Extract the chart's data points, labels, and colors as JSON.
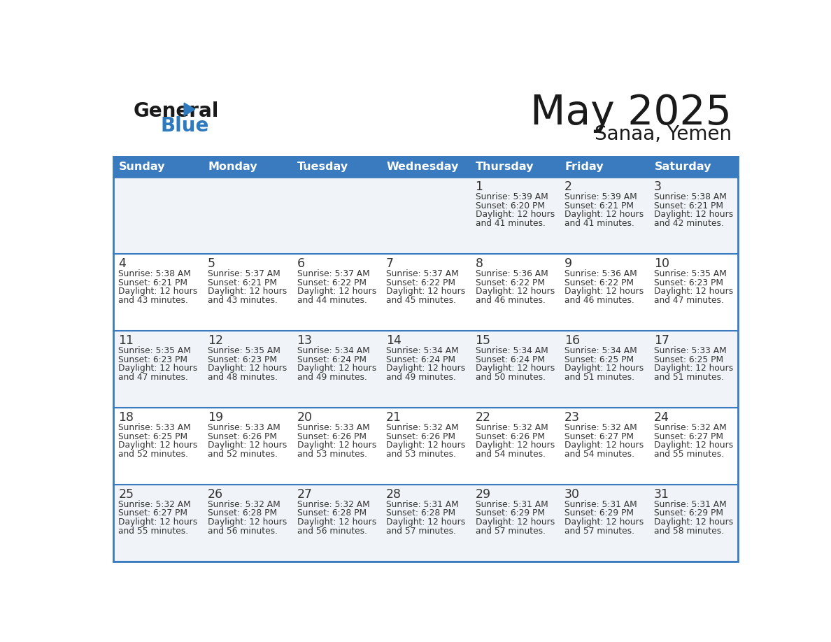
{
  "title": "May 2025",
  "subtitle": "Sanaa, Yemen",
  "header_color": "#3a7bbf",
  "header_text_color": "#ffffff",
  "days_of_week": [
    "Sunday",
    "Monday",
    "Tuesday",
    "Wednesday",
    "Thursday",
    "Friday",
    "Saturday"
  ],
  "bg_color": "#ffffff",
  "row_colors": [
    "#f0f4f8",
    "#ffffff",
    "#f0f4f8",
    "#ffffff",
    "#f0f4f8"
  ],
  "cell_text_color": "#333333",
  "border_color": "#3a7bbf",
  "line_color": "#3a7bbf",
  "calendar": [
    [
      null,
      null,
      null,
      null,
      {
        "day": 1,
        "sunrise": "5:39 AM",
        "sunset": "6:20 PM",
        "daylight": "12 hours and 41 minutes."
      },
      {
        "day": 2,
        "sunrise": "5:39 AM",
        "sunset": "6:21 PM",
        "daylight": "12 hours and 41 minutes."
      },
      {
        "day": 3,
        "sunrise": "5:38 AM",
        "sunset": "6:21 PM",
        "daylight": "12 hours and 42 minutes."
      }
    ],
    [
      {
        "day": 4,
        "sunrise": "5:38 AM",
        "sunset": "6:21 PM",
        "daylight": "12 hours and 43 minutes."
      },
      {
        "day": 5,
        "sunrise": "5:37 AM",
        "sunset": "6:21 PM",
        "daylight": "12 hours and 43 minutes."
      },
      {
        "day": 6,
        "sunrise": "5:37 AM",
        "sunset": "6:22 PM",
        "daylight": "12 hours and 44 minutes."
      },
      {
        "day": 7,
        "sunrise": "5:37 AM",
        "sunset": "6:22 PM",
        "daylight": "12 hours and 45 minutes."
      },
      {
        "day": 8,
        "sunrise": "5:36 AM",
        "sunset": "6:22 PM",
        "daylight": "12 hours and 46 minutes."
      },
      {
        "day": 9,
        "sunrise": "5:36 AM",
        "sunset": "6:22 PM",
        "daylight": "12 hours and 46 minutes."
      },
      {
        "day": 10,
        "sunrise": "5:35 AM",
        "sunset": "6:23 PM",
        "daylight": "12 hours and 47 minutes."
      }
    ],
    [
      {
        "day": 11,
        "sunrise": "5:35 AM",
        "sunset": "6:23 PM",
        "daylight": "12 hours and 47 minutes."
      },
      {
        "day": 12,
        "sunrise": "5:35 AM",
        "sunset": "6:23 PM",
        "daylight": "12 hours and 48 minutes."
      },
      {
        "day": 13,
        "sunrise": "5:34 AM",
        "sunset": "6:24 PM",
        "daylight": "12 hours and 49 minutes."
      },
      {
        "day": 14,
        "sunrise": "5:34 AM",
        "sunset": "6:24 PM",
        "daylight": "12 hours and 49 minutes."
      },
      {
        "day": 15,
        "sunrise": "5:34 AM",
        "sunset": "6:24 PM",
        "daylight": "12 hours and 50 minutes."
      },
      {
        "day": 16,
        "sunrise": "5:34 AM",
        "sunset": "6:25 PM",
        "daylight": "12 hours and 51 minutes."
      },
      {
        "day": 17,
        "sunrise": "5:33 AM",
        "sunset": "6:25 PM",
        "daylight": "12 hours and 51 minutes."
      }
    ],
    [
      {
        "day": 18,
        "sunrise": "5:33 AM",
        "sunset": "6:25 PM",
        "daylight": "12 hours and 52 minutes."
      },
      {
        "day": 19,
        "sunrise": "5:33 AM",
        "sunset": "6:26 PM",
        "daylight": "12 hours and 52 minutes."
      },
      {
        "day": 20,
        "sunrise": "5:33 AM",
        "sunset": "6:26 PM",
        "daylight": "12 hours and 53 minutes."
      },
      {
        "day": 21,
        "sunrise": "5:32 AM",
        "sunset": "6:26 PM",
        "daylight": "12 hours and 53 minutes."
      },
      {
        "day": 22,
        "sunrise": "5:32 AM",
        "sunset": "6:26 PM",
        "daylight": "12 hours and 54 minutes."
      },
      {
        "day": 23,
        "sunrise": "5:32 AM",
        "sunset": "6:27 PM",
        "daylight": "12 hours and 54 minutes."
      },
      {
        "day": 24,
        "sunrise": "5:32 AM",
        "sunset": "6:27 PM",
        "daylight": "12 hours and 55 minutes."
      }
    ],
    [
      {
        "day": 25,
        "sunrise": "5:32 AM",
        "sunset": "6:27 PM",
        "daylight": "12 hours and 55 minutes."
      },
      {
        "day": 26,
        "sunrise": "5:32 AM",
        "sunset": "6:28 PM",
        "daylight": "12 hours and 56 minutes."
      },
      {
        "day": 27,
        "sunrise": "5:32 AM",
        "sunset": "6:28 PM",
        "daylight": "12 hours and 56 minutes."
      },
      {
        "day": 28,
        "sunrise": "5:31 AM",
        "sunset": "6:28 PM",
        "daylight": "12 hours and 57 minutes."
      },
      {
        "day": 29,
        "sunrise": "5:31 AM",
        "sunset": "6:29 PM",
        "daylight": "12 hours and 57 minutes."
      },
      {
        "day": 30,
        "sunrise": "5:31 AM",
        "sunset": "6:29 PM",
        "daylight": "12 hours and 57 minutes."
      },
      {
        "day": 31,
        "sunrise": "5:31 AM",
        "sunset": "6:29 PM",
        "daylight": "12 hours and 58 minutes."
      }
    ]
  ]
}
